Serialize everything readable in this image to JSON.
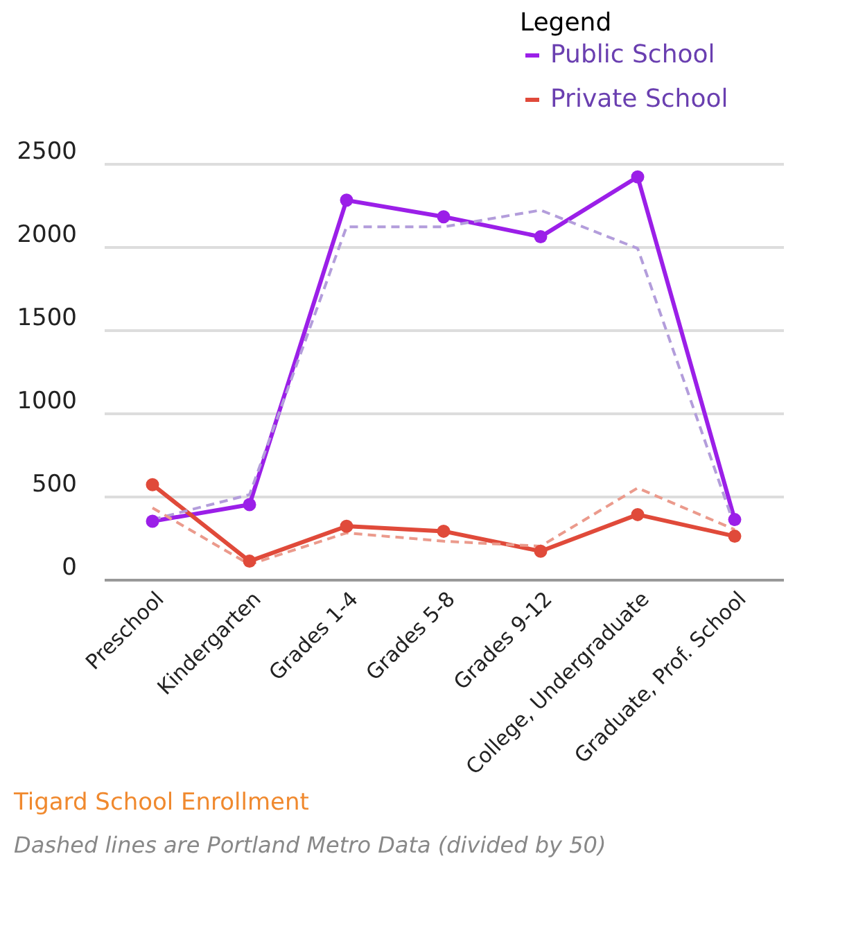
{
  "chart_data": {
    "type": "line",
    "title": "Tigard School Enrollment",
    "annotations": [
      "Dashed lines are Portland Metro Data (divided by 50)"
    ],
    "legend_title": "Legend",
    "categories": [
      "Preschool",
      "Kindergarten",
      "Grades 1-4",
      "Grades 5-8",
      "Grades 9-12",
      "College, Undergraduate",
      "Graduate, Prof. School"
    ],
    "series": [
      {
        "name": "Public School",
        "color": "#9b1fe8",
        "values": [
          350,
          450,
          2280,
          2180,
          2060,
          2420,
          360
        ]
      },
      {
        "name": "Private School",
        "color": "#e04a3a",
        "values": [
          570,
          110,
          320,
          290,
          170,
          390,
          260
        ]
      },
      {
        "color": "#b39ddb",
        "line_style": "dashed",
        "marker": "none",
        "values": [
          360,
          510,
          2120,
          2120,
          2220,
          1990,
          320
        ]
      },
      {
        "color": "#eb9a8c",
        "line_style": "dashed",
        "marker": "none",
        "values": [
          430,
          90,
          280,
          230,
          200,
          550,
          300
        ]
      }
    ],
    "ylim": [
      0,
      2500
    ],
    "yticks": [
      0,
      500,
      1000,
      1500,
      2000,
      2500
    ],
    "grid": "y",
    "legend": "top right",
    "marker": "circle",
    "line_style": "solid"
  }
}
